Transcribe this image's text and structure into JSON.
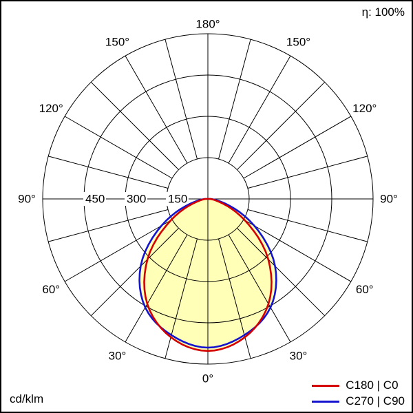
{
  "corner": {
    "efficiency": "η: 100%",
    "unit": "cd/klm"
  },
  "chart_data": {
    "type": "area",
    "projection": "polar",
    "description": "luminous intensity distribution polar curve",
    "units": "cd/klm",
    "efficiency": "η: 100%",
    "fill_color": "#ffffb8",
    "grid_color": "#000000",
    "r_axis": {
      "max": 600,
      "rings": [
        150,
        300,
        450,
        600
      ],
      "labeled_rings": [
        "150",
        "300",
        "450"
      ]
    },
    "angle_axis": {
      "zero_direction": "down",
      "grid_step_deg": 15,
      "label_step_deg": 30,
      "labels": [
        "0°",
        "30°",
        "60°",
        "90°",
        "120°",
        "150°",
        "180°"
      ]
    },
    "legend_position": "bottom-right",
    "series": [
      {
        "name": "C180 | C0",
        "color": "#d40000",
        "gamma_deg": [
          -90,
          -75,
          -60,
          -45,
          -30,
          -15,
          0,
          15,
          30,
          45,
          60,
          75,
          90
        ],
        "cd_per_klm": [
          5,
          45,
          155,
          310,
          440,
          520,
          552,
          520,
          440,
          310,
          155,
          45,
          5
        ]
      },
      {
        "name": "C270 | C90",
        "color": "#1414d0",
        "gamma_deg": [
          -90,
          -75,
          -60,
          -45,
          -30,
          -15,
          0,
          15,
          30,
          45,
          60,
          75,
          90
        ],
        "cd_per_klm": [
          5,
          65,
          195,
          345,
          455,
          512,
          540,
          512,
          455,
          345,
          195,
          65,
          5
        ]
      }
    ]
  }
}
